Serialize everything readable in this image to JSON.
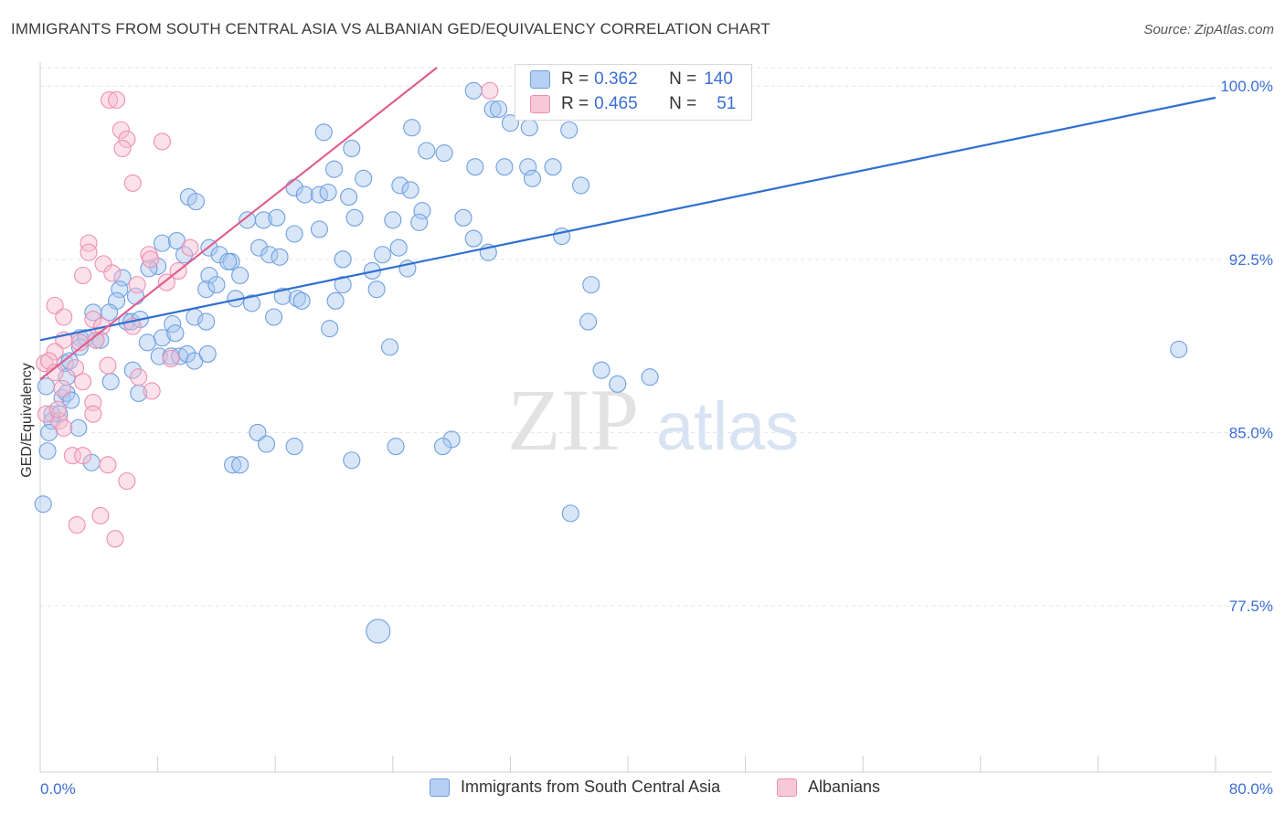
{
  "title": "IMMIGRANTS FROM SOUTH CENTRAL ASIA VS ALBANIAN GED/EQUIVALENCY CORRELATION CHART",
  "source": "Source: ZipAtlas.com",
  "watermark": {
    "zip": "ZIP",
    "atlas": "atlas"
  },
  "colors": {
    "blue_fill": "#a9c8f0",
    "blue_stroke": "#6f9fe0",
    "blue_line": "#2f6fd0",
    "pink_fill": "#f6bdd0",
    "pink_stroke": "#ee8fb0",
    "pink_line": "#e0608e",
    "axis_label": "#3b6fd4",
    "grid": "#e4e4e4"
  },
  "legend_top": [
    {
      "r_label": "R = ",
      "r_value": "0.362",
      "n_label": "N = ",
      "n_value": "140"
    },
    {
      "r_label": "R = ",
      "r_value": "0.465",
      "n_label": "N = ",
      "n_value": "51"
    }
  ],
  "chart_data": {
    "type": "scatter",
    "title": "IMMIGRANTS FROM SOUTH CENTRAL ASIA VS ALBANIAN GED/EQUIVALENCY CORRELATION CHART",
    "xlabel": "",
    "ylabel": "GED/Equivalency",
    "xlim": [
      0,
      80
    ],
    "ylim": [
      70.3,
      100.8
    ],
    "x_tick_labels": [
      "0.0%",
      "80.0%"
    ],
    "y_ticks": [
      77.5,
      85.0,
      92.5,
      100.0
    ],
    "y_tick_labels": [
      "77.5%",
      "85.0%",
      "92.5%",
      "100.0%"
    ],
    "grid": true,
    "legend_position": "bottom",
    "series": [
      {
        "name": "Immigrants from South Central Asia",
        "trend": {
          "x": [
            0,
            80
          ],
          "y": [
            89.0,
            99.5
          ]
        },
        "points": [
          [
            29.5,
            99.8
          ],
          [
            30.8,
            99.0
          ],
          [
            32.0,
            98.4
          ],
          [
            33.3,
            98.2
          ],
          [
            36.0,
            98.1
          ],
          [
            19.3,
            98.0
          ],
          [
            21.2,
            97.3
          ],
          [
            25.3,
            98.2
          ],
          [
            26.3,
            97.2
          ],
          [
            27.5,
            97.1
          ],
          [
            29.6,
            96.5
          ],
          [
            31.6,
            96.5
          ],
          [
            33.2,
            96.5
          ],
          [
            34.9,
            96.5
          ],
          [
            20.0,
            96.4
          ],
          [
            22.0,
            96.0
          ],
          [
            33.5,
            96.0
          ],
          [
            17.3,
            95.6
          ],
          [
            18.0,
            95.3
          ],
          [
            19.0,
            95.3
          ],
          [
            19.6,
            95.4
          ],
          [
            21.0,
            95.2
          ],
          [
            24.5,
            95.7
          ],
          [
            25.2,
            95.5
          ],
          [
            36.8,
            95.7
          ],
          [
            10.1,
            95.2
          ],
          [
            10.6,
            95.0
          ],
          [
            26.0,
            94.6
          ],
          [
            28.8,
            94.3
          ],
          [
            21.4,
            94.3
          ],
          [
            24.0,
            94.2
          ],
          [
            25.8,
            94.1
          ],
          [
            14.1,
            94.2
          ],
          [
            15.2,
            94.2
          ],
          [
            16.1,
            94.3
          ],
          [
            17.3,
            93.6
          ],
          [
            19.0,
            93.8
          ],
          [
            29.5,
            93.4
          ],
          [
            35.5,
            93.5
          ],
          [
            8.3,
            93.2
          ],
          [
            9.3,
            93.3
          ],
          [
            11.5,
            93.0
          ],
          [
            12.2,
            92.7
          ],
          [
            13.0,
            92.4
          ],
          [
            14.9,
            93.0
          ],
          [
            15.6,
            92.7
          ],
          [
            16.3,
            92.6
          ],
          [
            20.6,
            92.5
          ],
          [
            23.3,
            92.7
          ],
          [
            24.4,
            93.0
          ],
          [
            30.5,
            92.8
          ],
          [
            8.0,
            92.2
          ],
          [
            9.8,
            92.7
          ],
          [
            12.8,
            92.4
          ],
          [
            22.6,
            92.0
          ],
          [
            25.0,
            92.1
          ],
          [
            5.6,
            91.7
          ],
          [
            7.4,
            92.1
          ],
          [
            11.5,
            91.8
          ],
          [
            13.6,
            91.8
          ],
          [
            37.5,
            91.4
          ],
          [
            5.4,
            91.2
          ],
          [
            11.3,
            91.2
          ],
          [
            12.0,
            91.4
          ],
          [
            13.3,
            90.8
          ],
          [
            14.4,
            90.6
          ],
          [
            16.5,
            90.9
          ],
          [
            17.5,
            90.8
          ],
          [
            20.6,
            91.4
          ],
          [
            22.9,
            91.2
          ],
          [
            5.2,
            90.7
          ],
          [
            6.5,
            90.9
          ],
          [
            17.8,
            90.7
          ],
          [
            20.1,
            90.7
          ],
          [
            3.6,
            90.2
          ],
          [
            4.7,
            90.2
          ],
          [
            10.5,
            90.0
          ],
          [
            11.3,
            89.8
          ],
          [
            15.9,
            90.0
          ],
          [
            19.7,
            89.5
          ],
          [
            37.3,
            89.8
          ],
          [
            2.7,
            89.1
          ],
          [
            3.1,
            89.1
          ],
          [
            3.8,
            89.0
          ],
          [
            4.1,
            89.0
          ],
          [
            5.9,
            89.8
          ],
          [
            6.2,
            89.8
          ],
          [
            6.8,
            89.9
          ],
          [
            8.3,
            89.1
          ],
          [
            9.0,
            89.7
          ],
          [
            9.2,
            89.3
          ],
          [
            2.7,
            88.7
          ],
          [
            7.3,
            88.9
          ],
          [
            8.1,
            88.3
          ],
          [
            8.9,
            88.3
          ],
          [
            9.5,
            88.3
          ],
          [
            10.0,
            88.4
          ],
          [
            10.5,
            88.1
          ],
          [
            11.4,
            88.4
          ],
          [
            23.8,
            88.7
          ],
          [
            77.5,
            88.6
          ],
          [
            1.7,
            88.0
          ],
          [
            2.0,
            88.1
          ],
          [
            6.3,
            87.7
          ],
          [
            38.2,
            87.7
          ],
          [
            39.3,
            87.1
          ],
          [
            41.5,
            87.4
          ],
          [
            0.4,
            87.0
          ],
          [
            1.8,
            87.4
          ],
          [
            4.8,
            87.2
          ],
          [
            6.7,
            86.7
          ],
          [
            1.5,
            86.5
          ],
          [
            1.8,
            86.7
          ],
          [
            2.1,
            86.4
          ],
          [
            0.8,
            85.8
          ],
          [
            1.3,
            85.8
          ],
          [
            0.8,
            85.5
          ],
          [
            2.6,
            85.2
          ],
          [
            0.6,
            85.0
          ],
          [
            14.8,
            85.0
          ],
          [
            28.0,
            84.7
          ],
          [
            15.4,
            84.5
          ],
          [
            17.3,
            84.4
          ],
          [
            24.2,
            84.4
          ],
          [
            27.4,
            84.4
          ],
          [
            0.5,
            84.2
          ],
          [
            13.1,
            83.6
          ],
          [
            13.6,
            83.6
          ],
          [
            21.2,
            83.8
          ],
          [
            3.5,
            83.7
          ],
          [
            36.1,
            81.5
          ],
          [
            0.2,
            81.9
          ],
          [
            23.0,
            76.4
          ],
          [
            31.2,
            99.0
          ]
        ],
        "sizes": [
          9,
          9,
          9,
          9,
          9,
          9,
          9,
          9,
          9,
          9,
          9,
          9,
          9,
          9,
          9,
          9,
          9,
          9,
          9,
          9,
          9,
          9,
          9,
          9,
          9,
          9,
          9,
          9,
          9,
          9,
          9,
          9,
          9,
          9,
          9,
          9,
          9,
          9,
          9,
          9,
          9,
          9,
          9,
          9,
          9,
          9,
          9,
          9,
          9,
          9,
          9,
          9,
          9,
          9,
          9,
          9,
          9,
          9,
          9,
          9,
          9,
          9,
          9,
          9,
          9,
          9,
          9,
          9,
          9,
          9,
          9,
          9,
          9,
          9,
          9,
          9,
          9,
          9,
          9,
          9,
          9,
          9,
          9,
          9,
          9,
          9,
          9,
          9,
          9,
          9,
          9,
          9,
          9,
          9,
          9,
          9,
          9,
          9,
          9,
          9,
          9,
          9,
          9,
          9,
          9,
          9,
          9,
          9,
          9,
          9,
          9,
          9,
          9,
          9,
          9,
          9,
          9,
          9,
          9,
          9,
          9,
          9,
          9,
          9,
          9,
          9,
          9,
          9,
          9,
          9,
          9,
          9,
          13,
          9,
          9,
          9,
          9,
          9,
          9,
          9
        ]
      },
      {
        "name": "Albanians",
        "trend": {
          "x": [
            0,
            27.0
          ],
          "y": [
            87.3,
            100.8
          ]
        },
        "points": [
          [
            30.6,
            99.8
          ],
          [
            4.7,
            99.4
          ],
          [
            5.2,
            99.4
          ],
          [
            5.5,
            98.1
          ],
          [
            5.9,
            97.7
          ],
          [
            8.3,
            97.6
          ],
          [
            5.6,
            97.3
          ],
          [
            6.3,
            95.8
          ],
          [
            3.3,
            93.2
          ],
          [
            10.2,
            93.0
          ],
          [
            7.4,
            92.7
          ],
          [
            3.3,
            92.8
          ],
          [
            4.3,
            92.3
          ],
          [
            7.5,
            92.5
          ],
          [
            9.4,
            92.0
          ],
          [
            2.9,
            91.8
          ],
          [
            4.9,
            91.9
          ],
          [
            6.6,
            91.4
          ],
          [
            8.6,
            91.5
          ],
          [
            1.0,
            90.5
          ],
          [
            1.6,
            90.0
          ],
          [
            3.6,
            89.9
          ],
          [
            4.2,
            89.6
          ],
          [
            6.3,
            89.6
          ],
          [
            1.6,
            89.0
          ],
          [
            1.0,
            88.5
          ],
          [
            2.7,
            88.9
          ],
          [
            3.8,
            89.0
          ],
          [
            0.3,
            88.0
          ],
          [
            0.6,
            88.1
          ],
          [
            2.4,
            87.8
          ],
          [
            4.6,
            87.9
          ],
          [
            8.9,
            88.2
          ],
          [
            1.0,
            87.6
          ],
          [
            2.9,
            87.2
          ],
          [
            6.7,
            87.4
          ],
          [
            7.6,
            86.8
          ],
          [
            1.5,
            86.9
          ],
          [
            3.6,
            86.3
          ],
          [
            1.3,
            85.5
          ],
          [
            0.4,
            85.8
          ],
          [
            3.6,
            85.8
          ],
          [
            2.2,
            84.0
          ],
          [
            2.9,
            84.0
          ],
          [
            4.6,
            83.6
          ],
          [
            5.9,
            82.9
          ],
          [
            4.1,
            81.4
          ],
          [
            2.5,
            81.0
          ],
          [
            5.1,
            80.4
          ],
          [
            1.6,
            85.2
          ],
          [
            1.2,
            86.0
          ]
        ],
        "sizes": [
          9,
          9,
          9,
          9,
          9,
          9,
          9,
          9,
          9,
          9,
          9,
          9,
          9,
          9,
          9,
          9,
          9,
          9,
          9,
          9,
          9,
          9,
          9,
          9,
          9,
          9,
          9,
          9,
          9,
          9,
          9,
          9,
          9,
          9,
          9,
          9,
          9,
          9,
          9,
          9,
          9,
          9,
          9,
          9,
          9,
          9,
          9,
          9,
          9,
          9,
          9
        ]
      }
    ]
  }
}
